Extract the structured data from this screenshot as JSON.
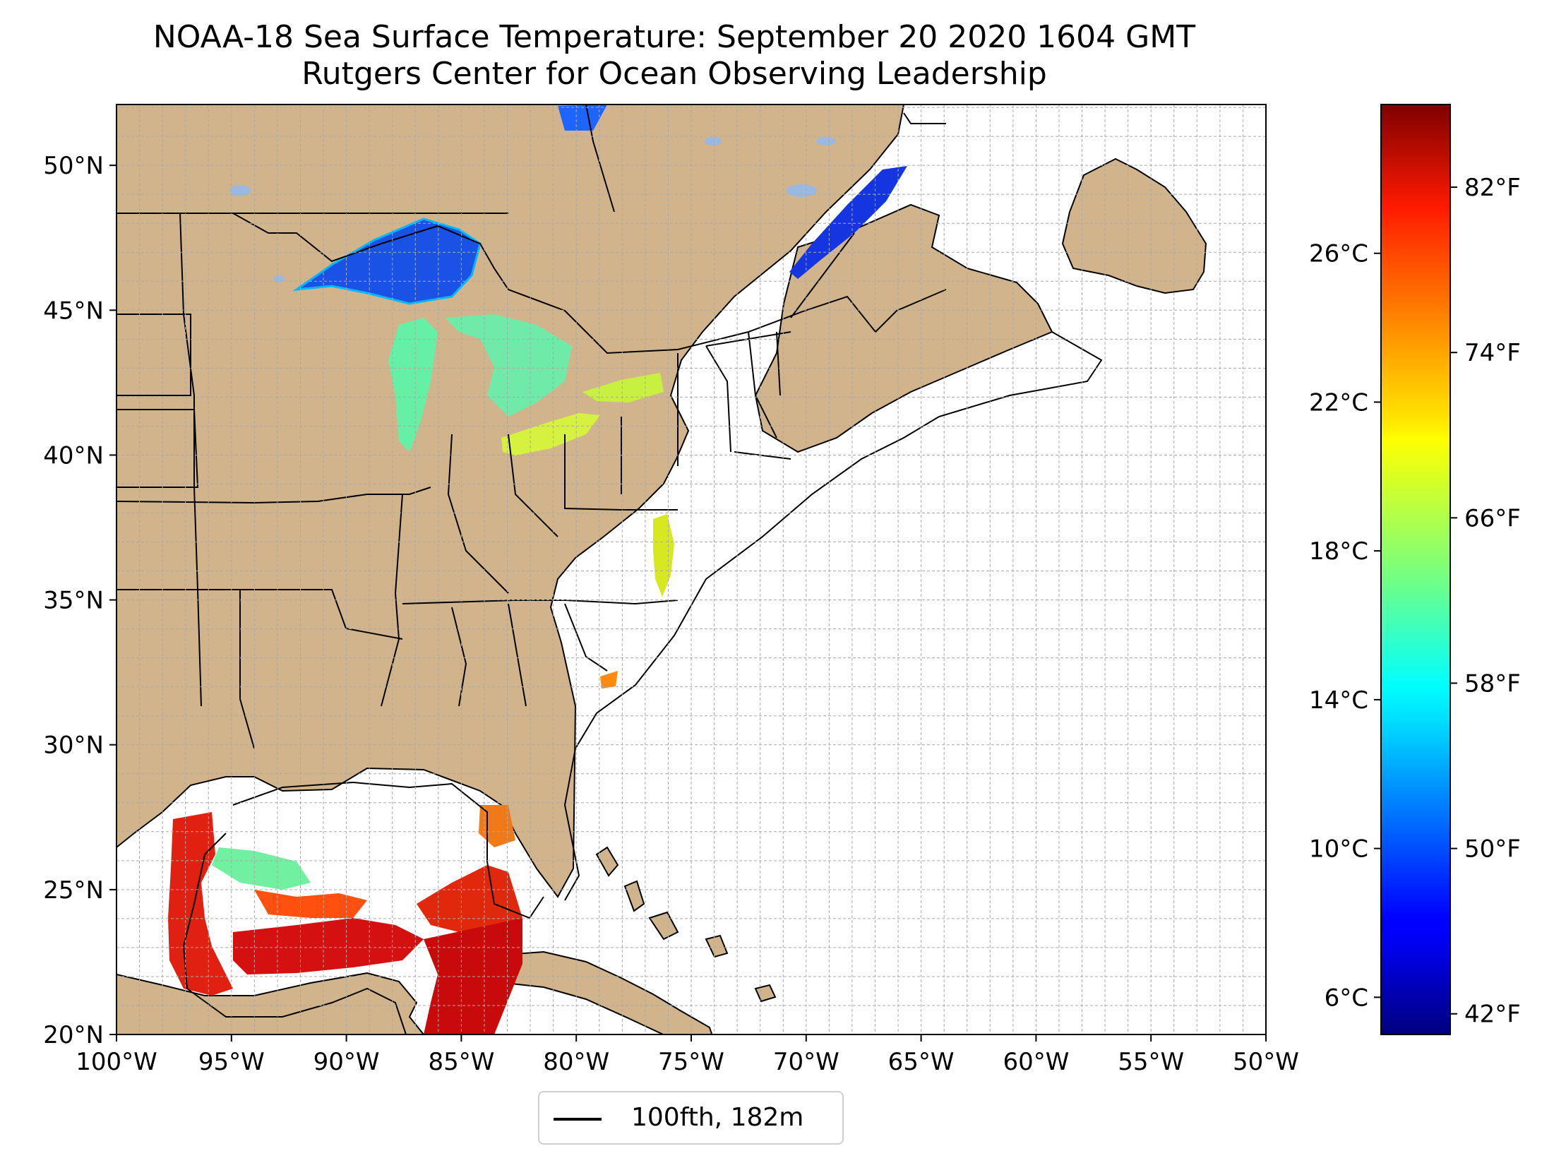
{
  "title": {
    "line1": "NOAA-18 Sea Surface Temperature: September 20 2020 1604 GMT",
    "line2": "Rutgers Center for Ocean Observing Leadership"
  },
  "map": {
    "lon_range": [
      -100,
      -50
    ],
    "lat_range": [
      20,
      52.1
    ],
    "gridlines": true,
    "grid_step_deg": 1,
    "lon_ticks": [
      {
        "value": -100,
        "label": "100°W"
      },
      {
        "value": -95,
        "label": "95°W"
      },
      {
        "value": -90,
        "label": "90°W"
      },
      {
        "value": -85,
        "label": "85°W"
      },
      {
        "value": -80,
        "label": "80°W"
      },
      {
        "value": -75,
        "label": "75°W"
      },
      {
        "value": -70,
        "label": "70°W"
      },
      {
        "value": -65,
        "label": "65°W"
      },
      {
        "value": -60,
        "label": "60°W"
      },
      {
        "value": -55,
        "label": "55°W"
      },
      {
        "value": -50,
        "label": "50°W"
      }
    ],
    "lat_ticks": [
      {
        "value": 20,
        "label": "20°N"
      },
      {
        "value": 25,
        "label": "25°N"
      },
      {
        "value": 30,
        "label": "30°N"
      },
      {
        "value": 35,
        "label": "35°N"
      },
      {
        "value": 40,
        "label": "40°N"
      },
      {
        "value": 45,
        "label": "45°N"
      },
      {
        "value": 50,
        "label": "50°N"
      }
    ],
    "colors": {
      "land": "#d2b48c",
      "ocean": "#ffffff",
      "lakes": "#9ab8e0",
      "borders": "#000000",
      "grid": "#aaaaaa"
    }
  },
  "colorbar": {
    "colormap": "jet",
    "range_c": [
      5,
      30
    ],
    "celsius_ticks": [
      {
        "value": 6,
        "label": "6°C"
      },
      {
        "value": 10,
        "label": "10°C"
      },
      {
        "value": 14,
        "label": "14°C"
      },
      {
        "value": 18,
        "label": "18°C"
      },
      {
        "value": 22,
        "label": "22°C"
      },
      {
        "value": 26,
        "label": "26°C"
      }
    ],
    "fahrenheit_ticks": [
      {
        "value": 42,
        "label": "42°F"
      },
      {
        "value": 50,
        "label": "50°F"
      },
      {
        "value": 58,
        "label": "58°F"
      },
      {
        "value": 66,
        "label": "66°F"
      },
      {
        "value": 74,
        "label": "74°F"
      },
      {
        "value": 82,
        "label": "82°F"
      }
    ]
  },
  "legend": {
    "label": "100fth, 182m",
    "line_color": "#000000"
  }
}
